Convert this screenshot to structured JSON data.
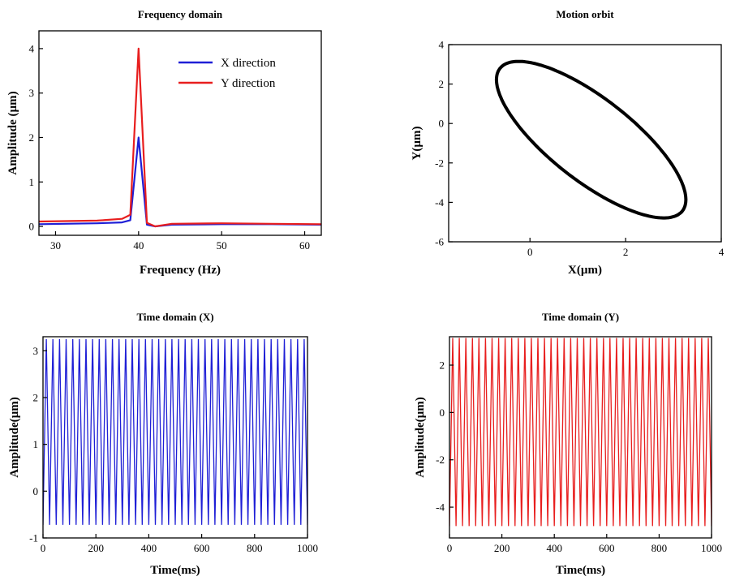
{
  "chart_data": [
    {
      "id": "freq",
      "type": "line",
      "title": "Frequency domain",
      "xlabel": "Frequency (Hz)",
      "ylabel": "Amplitude (µm)",
      "xlim": [
        28,
        62
      ],
      "ylim": [
        -0.2,
        4.4
      ],
      "xticks": [
        30,
        40,
        50,
        60
      ],
      "yticks": [
        0,
        1,
        2,
        3,
        4
      ],
      "legend_position": "top-right",
      "series": [
        {
          "name": "X direction",
          "color": "#1f1fd6",
          "x": [
            28,
            35,
            38,
            39,
            40,
            41,
            42,
            44,
            50,
            56,
            62
          ],
          "y": [
            0.05,
            0.07,
            0.09,
            0.14,
            2.0,
            0.04,
            0.0,
            0.04,
            0.05,
            0.05,
            0.04
          ]
        },
        {
          "name": "Y direction",
          "color": "#e81e1e",
          "x": [
            28,
            35,
            38,
            39,
            40,
            41,
            42,
            44,
            50,
            56,
            62
          ],
          "y": [
            0.11,
            0.13,
            0.17,
            0.26,
            4.0,
            0.08,
            0.0,
            0.06,
            0.07,
            0.06,
            0.05
          ]
        }
      ]
    },
    {
      "id": "orbit",
      "type": "line",
      "title": "Motion orbit",
      "xlabel": "X(µm)",
      "ylabel": "Y(µm)",
      "xlim": [
        -1.7,
        4
      ],
      "ylim": [
        -6,
        4
      ],
      "xticks": [
        0,
        2,
        4
      ],
      "yticks": [
        -6,
        -4,
        -2,
        0,
        2,
        4
      ],
      "orbit": {
        "x_center": 1.28,
        "x_amplitude": 1.98,
        "y_center": -0.82,
        "y_amplitude": 3.97,
        "phase_deg": 140,
        "color": "#000000"
      }
    },
    {
      "id": "timex",
      "type": "line",
      "title": "Time domain (X)",
      "xlabel": "Time(ms)",
      "ylabel": "Amplitude(µm)",
      "xlim": [
        0,
        1000
      ],
      "ylim": [
        -1,
        3.3
      ],
      "xticks": [
        0,
        200,
        400,
        600,
        800,
        1000
      ],
      "yticks": [
        -1,
        0,
        1,
        2,
        3
      ],
      "signal": {
        "frequency_hz": 40,
        "min": -0.72,
        "max": 3.25,
        "color": "#1f1fd6"
      }
    },
    {
      "id": "timey",
      "type": "line",
      "title": "Time domain (Y)",
      "xlabel": "Time(ms)",
      "ylabel": "Amplitude(µm)",
      "xlim": [
        0,
        1000
      ],
      "ylim": [
        -5.3,
        3.2
      ],
      "xticks": [
        0,
        200,
        400,
        600,
        800,
        1000
      ],
      "yticks": [
        -4,
        -2,
        0,
        2
      ],
      "signal": {
        "frequency_hz": 40,
        "min": -4.8,
        "max": 3.15,
        "color": "#e81e1e"
      }
    }
  ]
}
